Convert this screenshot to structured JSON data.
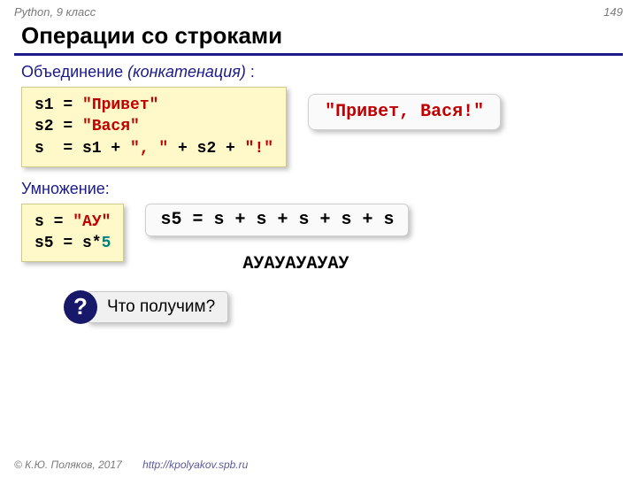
{
  "header": {
    "left": "Python, 9 класс",
    "page": "149"
  },
  "title": "Операции со строками",
  "concat": {
    "label_plain": "Объединение ",
    "label_italic": "(конкатенация)",
    "label_suffix": " :",
    "code_l1_a": "s1 = ",
    "code_l1_b": "\"Привет\"",
    "code_l2_a": "s2 = ",
    "code_l2_b": "\"Вася\"",
    "code_l3_a": "s  = s1 + ",
    "code_l3_b": "\", \"",
    "code_l3_c": " + s2 + ",
    "code_l3_d": "\"!\"",
    "result": "\"Привет, Вася!\""
  },
  "mult": {
    "label": "Умножение:",
    "code_l1_a": "s = ",
    "code_l1_b": "\"АУ\"",
    "code_l2_a": "s5 = s*",
    "code_l2_b": "5",
    "expansion": "s5 = s + s + s + s + s",
    "output": "АУАУАУАУАУ"
  },
  "question": {
    "mark": "?",
    "text": "Что получим?"
  },
  "footer": {
    "copyright": "© К.Ю. Поляков, 2017",
    "url": "http://kpolyakov.spb.ru"
  },
  "colors": {
    "title_rule": "#1a1a8a",
    "section_label": "#1a1a8a",
    "code_bg": "#fff9c9",
    "string": "#c00000",
    "number": "#008080",
    "q_circle": "#18186a"
  }
}
